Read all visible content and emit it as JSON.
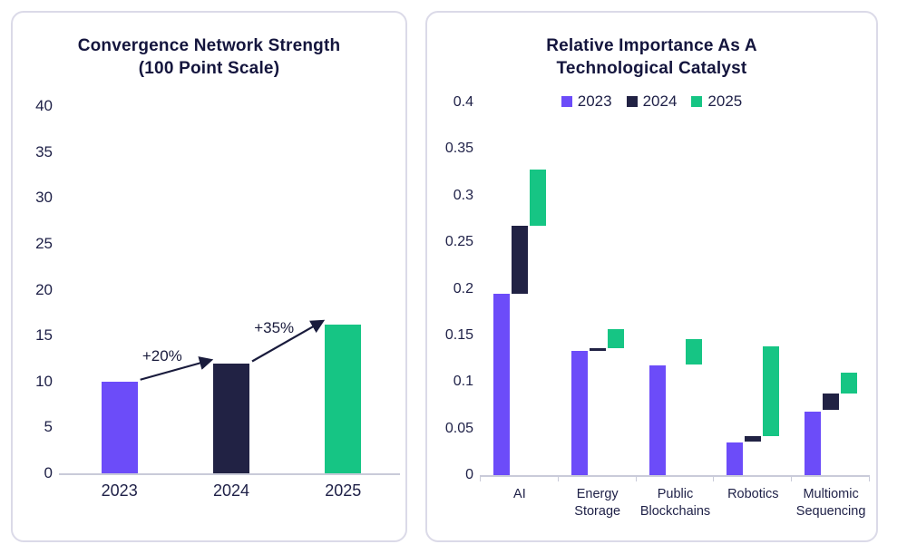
{
  "colors": {
    "purple": "#6C4CF9",
    "navy": "#212244",
    "green": "#16C584",
    "text_navy": "#14153D",
    "axis_gray": "#C9CBD9",
    "card_border": "#DBDAE8"
  },
  "chart_data": [
    {
      "id": "convergence-network-strength",
      "type": "bar",
      "title": "Convergence Network Strength\n(100 Point Scale)",
      "categories": [
        "2023",
        "2024",
        "2025"
      ],
      "values": [
        10,
        12,
        16.2
      ],
      "bar_colors": [
        "#6C4CF9",
        "#212244",
        "#16C584"
      ],
      "xlabel": "",
      "ylabel": "",
      "ylim": [
        0,
        40
      ],
      "yticks": [
        0,
        5,
        10,
        15,
        20,
        25,
        30,
        35,
        40
      ],
      "grid": false,
      "annotations": [
        {
          "label": "+20%",
          "from": 0,
          "to": 1
        },
        {
          "label": "+35%",
          "from": 1,
          "to": 2
        }
      ]
    },
    {
      "id": "relative-importance",
      "type": "floating-bar",
      "title": "Relative Importance As A\nTechnological Catalyst",
      "categories": [
        "AI",
        "Energy\nStorage",
        "Public\nBlockchains",
        "Robotics",
        "Multiomic\nSequencing"
      ],
      "legend_position": "top-center",
      "series": [
        {
          "name": "2023",
          "color": "#6C4CF9",
          "ranges": [
            [
              0,
              0.195
            ],
            [
              0,
              0.133
            ],
            [
              0,
              0.118
            ],
            [
              0,
              0.035
            ],
            [
              0,
              0.068
            ]
          ]
        },
        {
          "name": "2024",
          "color": "#212244",
          "ranges": [
            [
              0.195,
              0.268
            ],
            [
              0.133,
              0.136
            ],
            [
              0.118,
              0.118
            ],
            [
              0.036,
              0.042
            ],
            [
              0.07,
              0.088
            ]
          ]
        },
        {
          "name": "2025",
          "color": "#16C584",
          "ranges": [
            [
              0.268,
              0.328
            ],
            [
              0.136,
              0.157
            ],
            [
              0.119,
              0.146
            ],
            [
              0.042,
              0.138
            ],
            [
              0.088,
              0.11
            ]
          ]
        }
      ],
      "xlabel": "",
      "ylabel": "",
      "ylim": [
        0,
        0.4
      ],
      "yticks": [
        0,
        0.05,
        0.1,
        0.15,
        0.2,
        0.25,
        0.3,
        0.35,
        0.4
      ],
      "grid": false
    }
  ]
}
